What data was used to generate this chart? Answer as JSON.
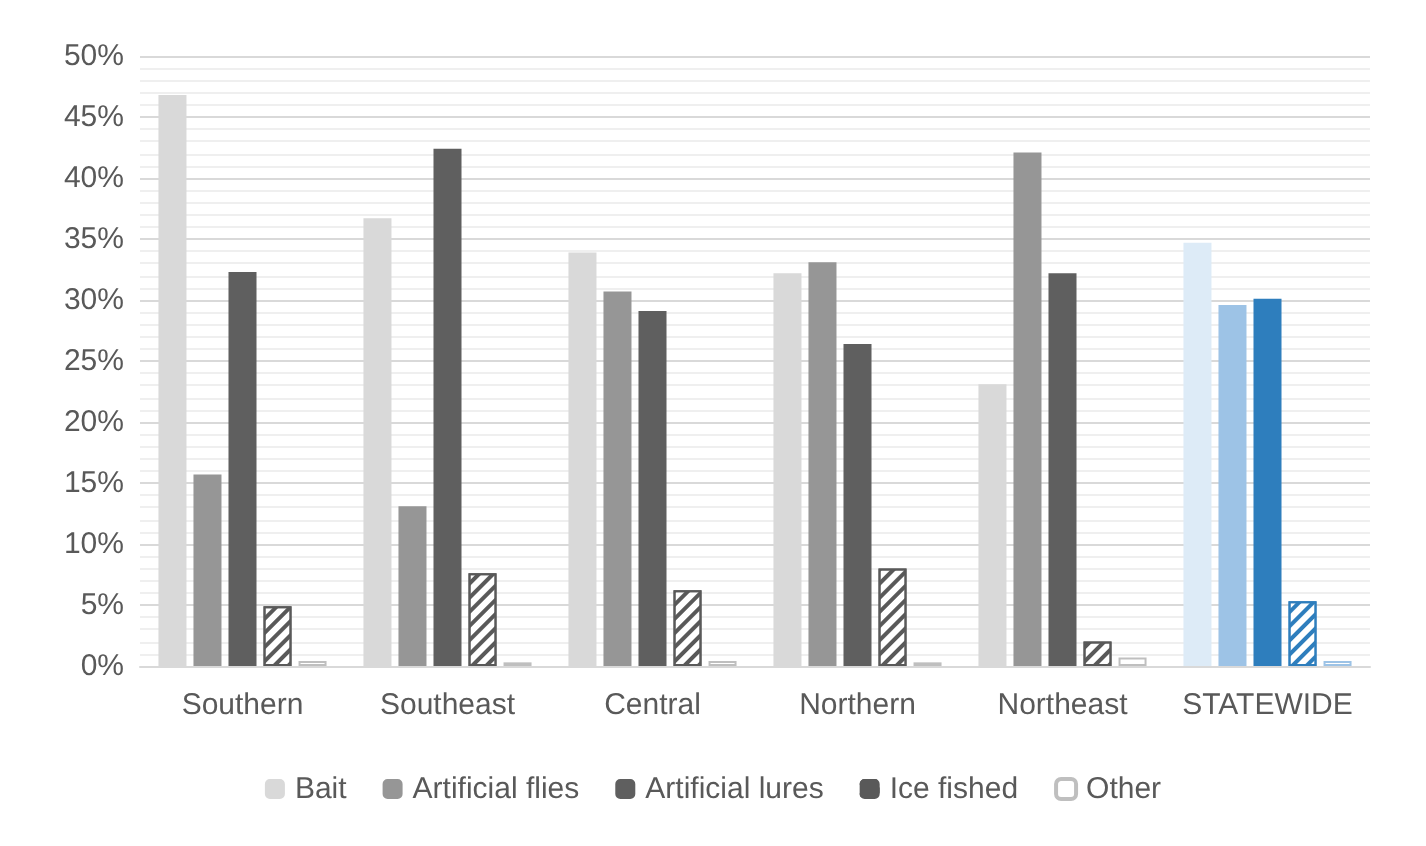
{
  "chart_data": {
    "type": "bar",
    "categories": [
      "Southern",
      "Southeast",
      "Central",
      "Northern",
      "Northeast",
      "STATEWIDE"
    ],
    "series": [
      {
        "name": "Bait",
        "color": "#d9d9d9",
        "colors": [
          "#d9d9d9",
          "#d9d9d9",
          "#d9d9d9",
          "#d9d9d9",
          "#d9d9d9",
          "#ddebf7"
        ],
        "values": [
          46.8,
          36.7,
          33.9,
          32.2,
          23.1,
          34.7
        ]
      },
      {
        "name": "Artificial flies",
        "color": "#969696",
        "colors": [
          "#969696",
          "#969696",
          "#969696",
          "#969696",
          "#969696",
          "#9dc3e6"
        ],
        "values": [
          15.7,
          13.1,
          30.7,
          33.1,
          42.1,
          29.6
        ]
      },
      {
        "name": "Artificial lures",
        "color": "#5f5f5f",
        "colors": [
          "#5f5f5f",
          "#5f5f5f",
          "#5f5f5f",
          "#5f5f5f",
          "#5f5f5f",
          "#2e7ebd"
        ],
        "values": [
          32.3,
          42.4,
          29.1,
          26.4,
          32.2,
          30.1
        ]
      },
      {
        "name": "Ice fished",
        "color": "#595959",
        "colors": [
          "#595959",
          "#595959",
          "#595959",
          "#595959",
          "#595959",
          "#2e7ebd"
        ],
        "values": [
          4.9,
          7.6,
          6.2,
          8.0,
          2.0,
          5.3
        ]
      },
      {
        "name": "Other",
        "color": "#ffffff",
        "colors": [
          "#ffffff",
          "#ffffff",
          "#ffffff",
          "#ffffff",
          "#ffffff",
          "#ffffff"
        ],
        "values": [
          0.4,
          0.3,
          0.4,
          0.3,
          0.7,
          0.4
        ]
      }
    ],
    "ylim": [
      0,
      50
    ],
    "yticks": [
      {
        "value": 0,
        "label": "0%"
      },
      {
        "value": 5,
        "label": "5%"
      },
      {
        "value": 10,
        "label": "10%"
      },
      {
        "value": 15,
        "label": "15%"
      },
      {
        "value": 20,
        "label": "20%"
      },
      {
        "value": 25,
        "label": "25%"
      },
      {
        "value": 30,
        "label": "30%"
      },
      {
        "value": 35,
        "label": "35%"
      },
      {
        "value": 40,
        "label": "40%"
      },
      {
        "value": 45,
        "label": "45%"
      },
      {
        "value": 50,
        "label": "50%"
      }
    ],
    "grid": "y",
    "legend": "bottom"
  }
}
